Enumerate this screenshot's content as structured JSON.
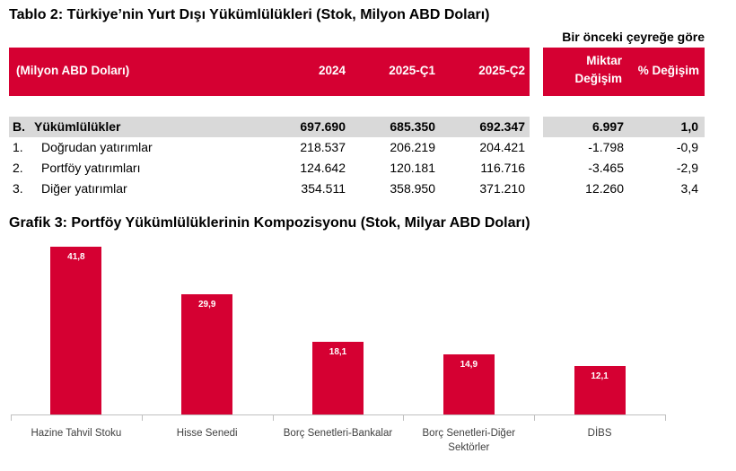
{
  "table": {
    "title": "Tablo 2: Türkiye’nin Yurt Dışı Yükümlülükleri (Stok, Milyon ABD Doları)",
    "group_header": "Bir önceki çeyreğe göre",
    "headers": [
      "(Milyon ABD Doları)",
      "2024",
      "2025-Ç1",
      "2025-Ç2",
      "Miktar Değişim",
      "% Değişim"
    ],
    "rows": [
      {
        "no": "B.",
        "label": "Yükümlülükler",
        "values": [
          "697.690",
          "685.350",
          "692.347",
          "6.997",
          "1,0"
        ]
      },
      {
        "no": "1.",
        "label": "Doğrudan yatırımlar",
        "values": [
          "218.537",
          "206.219",
          "204.421",
          "-1.798",
          "-0,9"
        ]
      },
      {
        "no": "2.",
        "label": "Portföy yatırımları",
        "values": [
          "124.642",
          "120.181",
          "116.716",
          "-3.465",
          "-2,9"
        ]
      },
      {
        "no": "3.",
        "label": "Diğer yatırımlar",
        "values": [
          "354.511",
          "358.950",
          "371.210",
          "12.260",
          "3,4"
        ]
      }
    ],
    "header_color": "#d50032"
  },
  "chart_data": {
    "type": "bar",
    "title": "Grafik 3: Portföy Yükümlülüklerinin Kompozisyonu (Stok, Milyar ABD Doları)",
    "categories": [
      "Hazine Tahvil Stoku",
      "Hisse Senedi",
      "Borç Senetleri-Bankalar",
      "Borç Senetleri-Diğer Sektörler",
      "DİBS"
    ],
    "values": [
      41.8,
      29.9,
      18.1,
      14.9,
      12.1
    ],
    "labels": [
      "41,8",
      "29,9",
      "18,1",
      "14,9",
      "12,1"
    ],
    "color": "#d50032",
    "grid": false
  }
}
